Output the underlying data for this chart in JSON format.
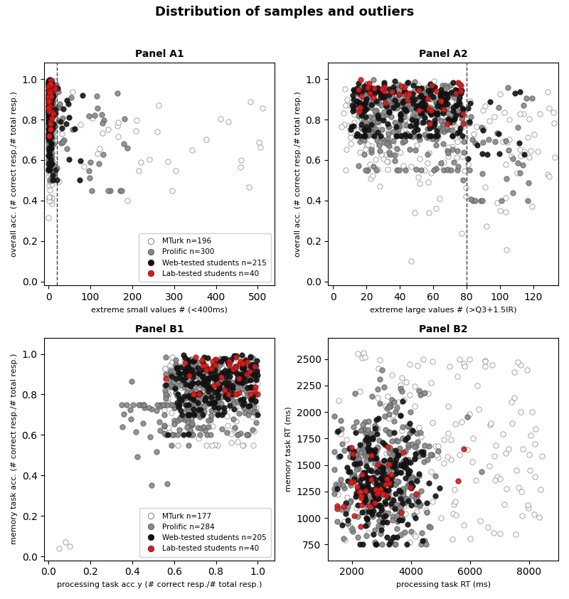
{
  "title": "Distribution of samples and outliers",
  "colors": {
    "mturk_face": "white",
    "mturk_edge": "#888888",
    "prolific_face": "#888888",
    "prolific_edge": "#555555",
    "web_face": "#111111",
    "web_edge": "#111111",
    "lab_face": "#cc2222",
    "lab_edge": "#aa0000"
  },
  "marker_size": 28,
  "convex_hull_color": "#e8e8b0",
  "convex_hull_alpha": 0.65,
  "convex_hull_edge": "#999977",
  "dashed_line_color": "#444444",
  "panel_A1": {
    "title": "Panel A1",
    "xlabel": "extreme small values # (<400ms)",
    "ylabel": "overall acc. (# correct resp./# total resp.)",
    "dashed_x": 20,
    "xlim": [
      -10,
      540
    ],
    "ylim": [
      -0.02,
      1.08
    ],
    "legend_labels": [
      "MTurk n=196",
      "Prolific n=300",
      "Web-tested students n=215",
      "Lab-tested students n=40"
    ]
  },
  "panel_A2": {
    "title": "Panel A2",
    "xlabel": "extreme large values # (>Q3+1.5IR)",
    "ylabel": "overall acc. (# correct resp./# total resp.)",
    "dashed_x": 80,
    "xlim": [
      -3,
      135
    ],
    "ylim": [
      -0.02,
      1.08
    ],
    "legend_labels": [
      "MTurk n=196",
      "Prolific n=300",
      "Web-tested students n=215",
      "Lab-tested students n=40"
    ]
  },
  "panel_B1": {
    "title": "Panel B1",
    "xlabel": "processing task acc.y (# correct resp./# total resp.)",
    "ylabel": "memory task acc. (# correct resp./# total resp.)",
    "xlim": [
      -0.02,
      1.08
    ],
    "ylim": [
      -0.02,
      1.08
    ],
    "legend_labels": [
      "MTurk n=177",
      "Prolific n=284",
      "Web-tested students n=205",
      "Lab-tested students n=40"
    ]
  },
  "panel_B2": {
    "title": "Panel B2",
    "xlabel": "processing task RT (ms)",
    "ylabel": "memory task RT (ms)",
    "xlim": [
      1200,
      9000
    ],
    "ylim": [
      600,
      2700
    ],
    "legend_labels": [
      "MTurk n=177",
      "Prolific n=284",
      "Web-tested students n=205",
      "Lab-tested students n=40"
    ]
  }
}
